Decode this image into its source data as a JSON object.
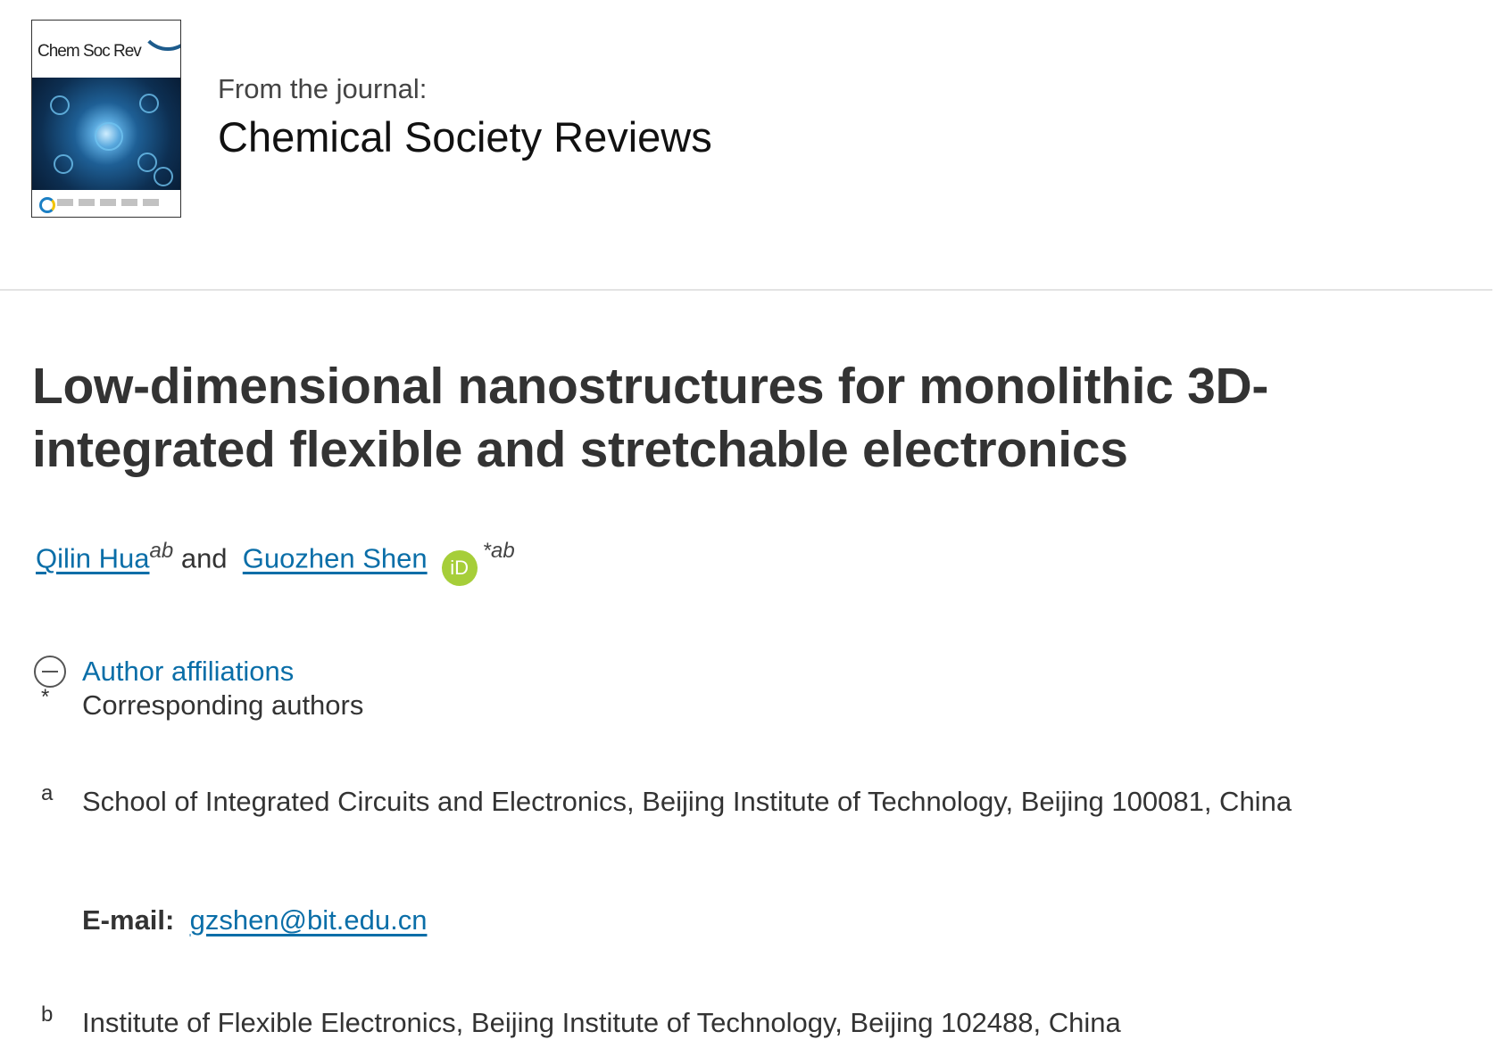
{
  "journal": {
    "cover_logo_text": "Chem Soc Rev",
    "from_label": "From the journal:",
    "name": "Chemical Society Reviews"
  },
  "article": {
    "title": "Low-dimensional nanostructures for monolithic 3D-integrated flexible and stretchable electronics"
  },
  "authors": [
    {
      "name": "Qilin Hua",
      "sup": "ab"
    },
    {
      "name": "Guozhen Shen",
      "sup": "*ab",
      "orcid_icon": "iD"
    }
  ],
  "authors_conjunction": "and",
  "affiliations": {
    "toggle_label": "Author affiliations",
    "corresponding": {
      "mark": "*",
      "text": "Corresponding authors"
    },
    "items": [
      {
        "mark": "a",
        "text": "School of Integrated Circuits and Electronics, Beijing Institute of Technology, Beijing 100081, China",
        "email_label": "E-mail:",
        "email": "gzshen@bit.edu.cn"
      },
      {
        "mark": "b",
        "text": "Institute of Flexible Electronics, Beijing Institute of Technology, Beijing 102488, China"
      }
    ]
  },
  "colors": {
    "link": "#0a6ea8",
    "orcid": "#a6ce39",
    "text": "#333333"
  }
}
